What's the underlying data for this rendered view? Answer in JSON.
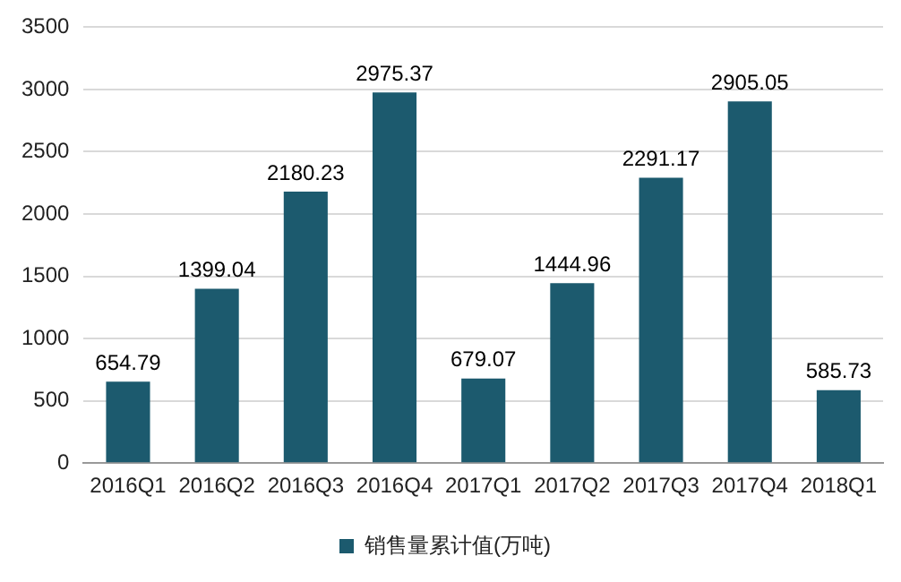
{
  "chart_data": {
    "type": "bar",
    "categories": [
      "2016Q1",
      "2016Q2",
      "2016Q3",
      "2016Q4",
      "2017Q1",
      "2017Q2",
      "2017Q3",
      "2017Q4",
      "2018Q1"
    ],
    "series": [
      {
        "name": "销售量累计值(万吨)",
        "color": "#1c5a6e",
        "values": [
          654.79,
          1399.04,
          2180.23,
          2975.37,
          679.07,
          1444.96,
          2291.17,
          2905.05,
          585.73
        ]
      }
    ],
    "ylim": [
      0,
      3500
    ],
    "yticks": [
      0,
      500,
      1000,
      1500,
      2000,
      2500,
      3000,
      3500
    ],
    "grid": "y",
    "legend": "bottom",
    "data_labels": true
  }
}
